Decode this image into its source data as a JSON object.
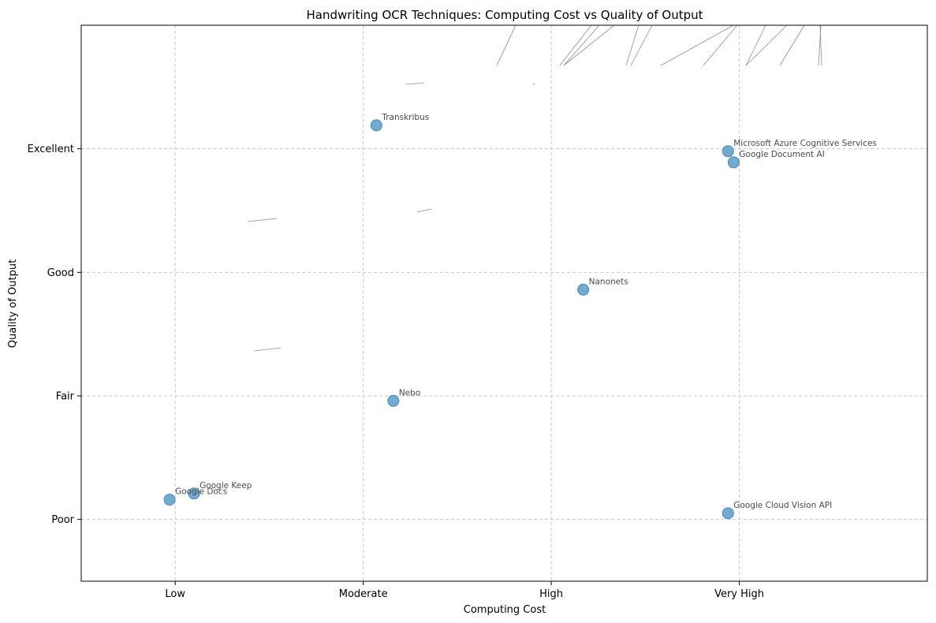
{
  "chart_data": {
    "type": "scatter",
    "title": "Handwriting OCR Techniques: Computing Cost vs Quality of Output",
    "xlabel": "Computing Cost",
    "ylabel": "Quality of Output",
    "x_categories": [
      "Low",
      "Moderate",
      "High",
      "Very High"
    ],
    "y_categories": [
      "Poor",
      "Fair",
      "Good",
      "Excellent"
    ],
    "xlim": [
      -0.5,
      4.0
    ],
    "ylim": [
      -0.5,
      4.0
    ],
    "grid": true,
    "marker_color": "#5b9bc8",
    "points": [
      {
        "label": "Transkribus",
        "x": 1.07,
        "y": 3.19
      },
      {
        "label": "Microsoft Azure Cognitive Services",
        "x": 2.94,
        "y": 2.98
      },
      {
        "label": "Google Document AI",
        "x": 2.97,
        "y": 2.89
      },
      {
        "label": "Nanonets",
        "x": 2.17,
        "y": 1.86
      },
      {
        "label": "Nebo",
        "x": 1.16,
        "y": 0.96
      },
      {
        "label": "Google Keep",
        "x": 0.1,
        "y": 0.21
      },
      {
        "label": "Google Docs",
        "x": -0.03,
        "y": 0.16
      },
      {
        "label": "Google Cloud Vision API",
        "x": 2.94,
        "y": 0.05
      }
    ]
  }
}
